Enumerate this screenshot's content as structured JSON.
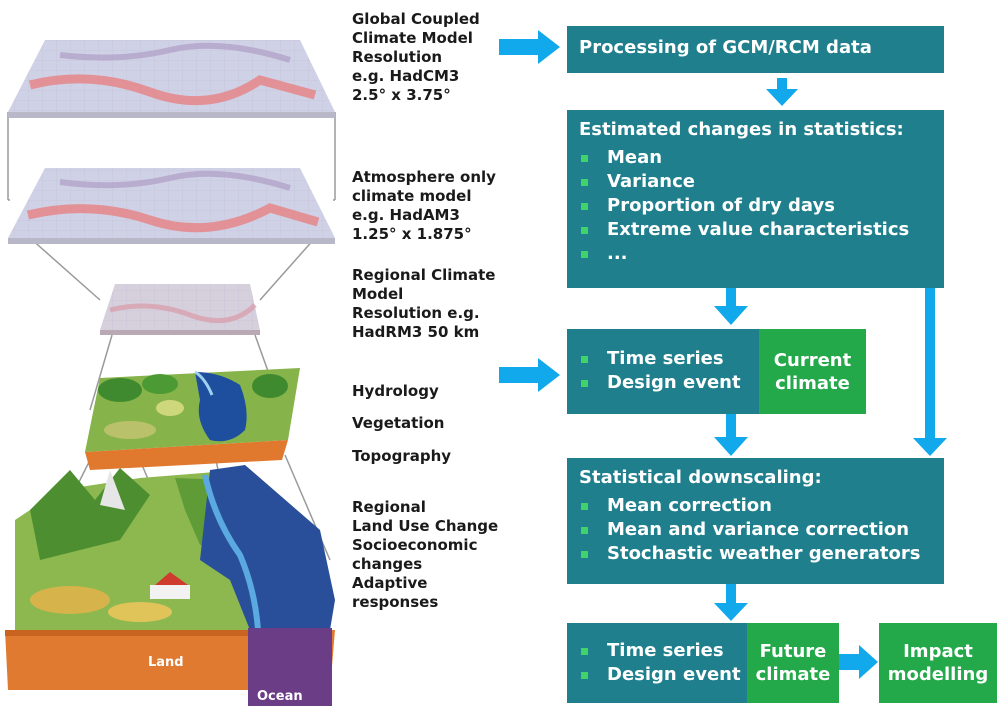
{
  "colors": {
    "teal_box": "#1f7f8c",
    "green_box": "#23a84a",
    "arrow_blue": "#12a8ec",
    "bullet_green": "#3fd36a",
    "ocean": "#6b3d86"
  },
  "left_illustration": {
    "land_label": "Land",
    "ocean_label": "Ocean"
  },
  "middle_labels": {
    "gcm": [
      "Global Coupled",
      "Climate Model",
      "Resolution",
      "e.g. HadCM3",
      "2.5° x 3.75°"
    ],
    "agcm": [
      "Atmosphere only",
      "climate model",
      "e.g. HadAM3",
      "1.25° x 1.875°"
    ],
    "rcm": [
      "Regional Climate",
      "Model",
      "Resolution e.g.",
      "HadRM3 50 km"
    ],
    "hydrology": "Hydrology",
    "vegetation": "Vegetation",
    "topography": "Topography",
    "regional": [
      "Regional",
      "Land Use Change",
      "Socioeconomic",
      "changes",
      "Adaptive",
      "responses"
    ]
  },
  "flow": {
    "processing": "Processing of GCM/RCM data",
    "estimated": {
      "title": "Estimated changes in statistics:",
      "items": [
        "Mean",
        "Variance",
        "Proportion of dry days",
        "Extreme value characteristics",
        "..."
      ]
    },
    "current": {
      "items": [
        "Time series",
        "Design event"
      ],
      "label": [
        "Current",
        "climate"
      ]
    },
    "downscaling": {
      "title": "Statistical downscaling:",
      "items": [
        "Mean correction",
        "Mean and variance correction",
        "Stochastic weather generators"
      ]
    },
    "future": {
      "items": [
        "Time series",
        "Design event"
      ],
      "label": [
        "Future",
        "climate"
      ]
    },
    "impact": [
      "Impact",
      "modelling"
    ]
  }
}
